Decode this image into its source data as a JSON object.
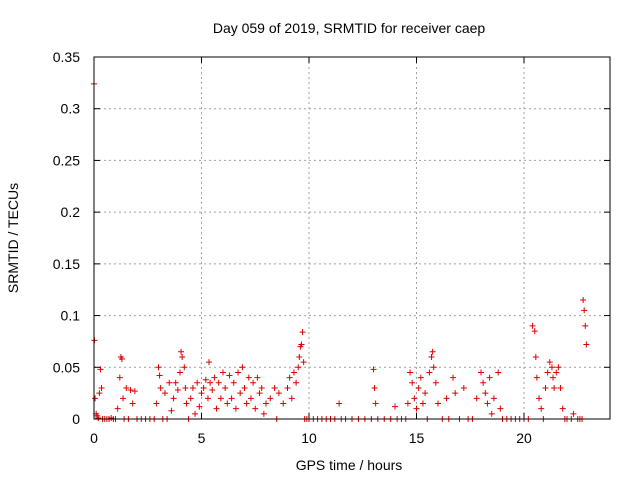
{
  "chart_data": {
    "type": "scatter",
    "title": "Day 059 of 2019, SRMTID for receiver caep",
    "xlabel": "GPS time / hours",
    "ylabel": "SRMTID / TECUs",
    "xlim": [
      0,
      24.0
    ],
    "ylim": [
      0,
      0.35
    ],
    "xticks": [
      0,
      5,
      10,
      15,
      20
    ],
    "yticks": [
      0,
      0.05,
      0.1,
      0.15,
      0.2,
      0.25,
      0.3,
      0.35
    ],
    "grid": true,
    "marker": "+",
    "color": "#e00000",
    "series": [
      {
        "name": "SRMTID",
        "points": [
          [
            0.0,
            0.324
          ],
          [
            0.02,
            0.076
          ],
          [
            0.05,
            0.02
          ],
          [
            0.1,
            0.005
          ],
          [
            0.15,
            0.003
          ],
          [
            0.2,
            0.001
          ],
          [
            0.25,
            0.025
          ],
          [
            0.3,
            0.048
          ],
          [
            0.35,
            0.03
          ],
          [
            0.4,
            0.0
          ],
          [
            0.5,
            0.0
          ],
          [
            0.6,
            0.0
          ],
          [
            0.7,
            0.0
          ],
          [
            0.8,
            0.001
          ],
          [
            0.9,
            0.0
          ],
          [
            1.0,
            0.0
          ],
          [
            1.1,
            0.01
          ],
          [
            1.2,
            0.04
          ],
          [
            1.25,
            0.06
          ],
          [
            1.3,
            0.058
          ],
          [
            1.35,
            0.02
          ],
          [
            1.4,
            0.0
          ],
          [
            1.5,
            0.03
          ],
          [
            1.6,
            0.0
          ],
          [
            1.7,
            0.028
          ],
          [
            1.8,
            0.015
          ],
          [
            1.9,
            0.027
          ],
          [
            2.0,
            0.0
          ],
          [
            2.2,
            0.0
          ],
          [
            2.4,
            0.0
          ],
          [
            2.6,
            0.0
          ],
          [
            2.8,
            0.0
          ],
          [
            2.9,
            0.015
          ],
          [
            3.0,
            0.05
          ],
          [
            3.05,
            0.042
          ],
          [
            3.1,
            0.03
          ],
          [
            3.2,
            0.0
          ],
          [
            3.3,
            0.025
          ],
          [
            3.4,
            0.0
          ],
          [
            3.5,
            0.035
          ],
          [
            3.6,
            0.008
          ],
          [
            3.7,
            0.02
          ],
          [
            3.8,
            0.035
          ],
          [
            3.9,
            0.028
          ],
          [
            4.0,
            0.045
          ],
          [
            4.05,
            0.065
          ],
          [
            4.1,
            0.06
          ],
          [
            4.2,
            0.05
          ],
          [
            4.25,
            0.03
          ],
          [
            4.3,
            0.015
          ],
          [
            4.4,
            0.0
          ],
          [
            4.5,
            0.02
          ],
          [
            4.6,
            0.03
          ],
          [
            4.7,
            0.005
          ],
          [
            4.8,
            0.035
          ],
          [
            4.9,
            0.012
          ],
          [
            5.0,
            0.025
          ],
          [
            5.1,
            0.03
          ],
          [
            5.2,
            0.038
          ],
          [
            5.3,
            0.02
          ],
          [
            5.35,
            0.055
          ],
          [
            5.4,
            0.035
          ],
          [
            5.5,
            0.028
          ],
          [
            5.6,
            0.04
          ],
          [
            5.7,
            0.01
          ],
          [
            5.8,
            0.035
          ],
          [
            5.9,
            0.02
          ],
          [
            6.0,
            0.045
          ],
          [
            6.1,
            0.03
          ],
          [
            6.2,
            0.015
          ],
          [
            6.3,
            0.042
          ],
          [
            6.4,
            0.02
          ],
          [
            6.5,
            0.035
          ],
          [
            6.6,
            0.01
          ],
          [
            6.7,
            0.045
          ],
          [
            6.8,
            0.025
          ],
          [
            6.9,
            0.05
          ],
          [
            7.0,
            0.03
          ],
          [
            7.1,
            0.015
          ],
          [
            7.2,
            0.04
          ],
          [
            7.3,
            0.02
          ],
          [
            7.4,
            0.035
          ],
          [
            7.5,
            0.01
          ],
          [
            7.6,
            0.04
          ],
          [
            7.7,
            0.025
          ],
          [
            7.8,
            0.03
          ],
          [
            7.9,
            0.005
          ],
          [
            8.0,
            0.015
          ],
          [
            8.2,
            0.02
          ],
          [
            8.4,
            0.03
          ],
          [
            8.5,
            0.0
          ],
          [
            8.6,
            0.025
          ],
          [
            8.8,
            0.015
          ],
          [
            9.0,
            0.03
          ],
          [
            9.1,
            0.04
          ],
          [
            9.2,
            0.02
          ],
          [
            9.3,
            0.045
          ],
          [
            9.4,
            0.035
          ],
          [
            9.5,
            0.05
          ],
          [
            9.55,
            0.06
          ],
          [
            9.6,
            0.07
          ],
          [
            9.65,
            0.072
          ],
          [
            9.7,
            0.084
          ],
          [
            9.75,
            0.055
          ],
          [
            9.8,
            0.0
          ],
          [
            9.9,
            0.0
          ],
          [
            10.0,
            0.0
          ],
          [
            10.2,
            0.0
          ],
          [
            10.4,
            0.0
          ],
          [
            10.6,
            0.0
          ],
          [
            10.8,
            0.0
          ],
          [
            11.0,
            0.0
          ],
          [
            11.2,
            0.0
          ],
          [
            11.4,
            0.015
          ],
          [
            11.5,
            0.0
          ],
          [
            11.7,
            0.0
          ],
          [
            12.0,
            0.0
          ],
          [
            12.3,
            0.0
          ],
          [
            12.6,
            0.0
          ],
          [
            12.9,
            0.0
          ],
          [
            13.0,
            0.048
          ],
          [
            13.05,
            0.03
          ],
          [
            13.1,
            0.015
          ],
          [
            13.2,
            0.0
          ],
          [
            13.5,
            0.0
          ],
          [
            13.8,
            0.0
          ],
          [
            14.0,
            0.012
          ],
          [
            14.1,
            0.0
          ],
          [
            14.3,
            0.0
          ],
          [
            14.5,
            0.0
          ],
          [
            14.6,
            0.015
          ],
          [
            14.7,
            0.045
          ],
          [
            14.8,
            0.035
          ],
          [
            14.9,
            0.02
          ],
          [
            15.0,
            0.01
          ],
          [
            15.1,
            0.03
          ],
          [
            15.2,
            0.04
          ],
          [
            15.3,
            0.015
          ],
          [
            15.4,
            0.025
          ],
          [
            15.5,
            0.0
          ],
          [
            15.6,
            0.045
          ],
          [
            15.7,
            0.06
          ],
          [
            15.75,
            0.065
          ],
          [
            15.8,
            0.05
          ],
          [
            15.9,
            0.035
          ],
          [
            16.0,
            0.015
          ],
          [
            16.2,
            0.0
          ],
          [
            16.4,
            0.02
          ],
          [
            16.5,
            0.0
          ],
          [
            16.7,
            0.04
          ],
          [
            16.8,
            0.025
          ],
          [
            17.0,
            0.0
          ],
          [
            17.2,
            0.03
          ],
          [
            17.4,
            0.0
          ],
          [
            17.6,
            0.0
          ],
          [
            17.8,
            0.02
          ],
          [
            18.0,
            0.045
          ],
          [
            18.1,
            0.035
          ],
          [
            18.2,
            0.025
          ],
          [
            18.3,
            0.015
          ],
          [
            18.4,
            0.04
          ],
          [
            18.5,
            0.005
          ],
          [
            18.6,
            0.02
          ],
          [
            18.8,
            0.045
          ],
          [
            18.9,
            0.01
          ],
          [
            19.0,
            0.0
          ],
          [
            19.2,
            0.0
          ],
          [
            19.4,
            0.0
          ],
          [
            19.6,
            0.0
          ],
          [
            19.8,
            0.0
          ],
          [
            20.0,
            0.0
          ],
          [
            20.2,
            0.0
          ],
          [
            20.4,
            0.09
          ],
          [
            20.5,
            0.085
          ],
          [
            20.55,
            0.06
          ],
          [
            20.6,
            0.04
          ],
          [
            20.7,
            0.02
          ],
          [
            20.8,
            0.01
          ],
          [
            20.9,
            0.0
          ],
          [
            21.0,
            0.03
          ],
          [
            21.1,
            0.045
          ],
          [
            21.2,
            0.055
          ],
          [
            21.3,
            0.05
          ],
          [
            21.35,
            0.04
          ],
          [
            21.4,
            0.03
          ],
          [
            21.5,
            0.045
          ],
          [
            21.6,
            0.05
          ],
          [
            21.7,
            0.03
          ],
          [
            21.8,
            0.01
          ],
          [
            21.9,
            0.0
          ],
          [
            22.0,
            0.0
          ],
          [
            22.2,
            0.0
          ],
          [
            22.3,
            0.005
          ],
          [
            22.5,
            0.0
          ],
          [
            22.6,
            0.0
          ],
          [
            22.7,
            0.0
          ],
          [
            22.75,
            0.115
          ],
          [
            22.8,
            0.105
          ],
          [
            22.85,
            0.09
          ],
          [
            22.9,
            0.072
          ]
        ]
      }
    ]
  }
}
